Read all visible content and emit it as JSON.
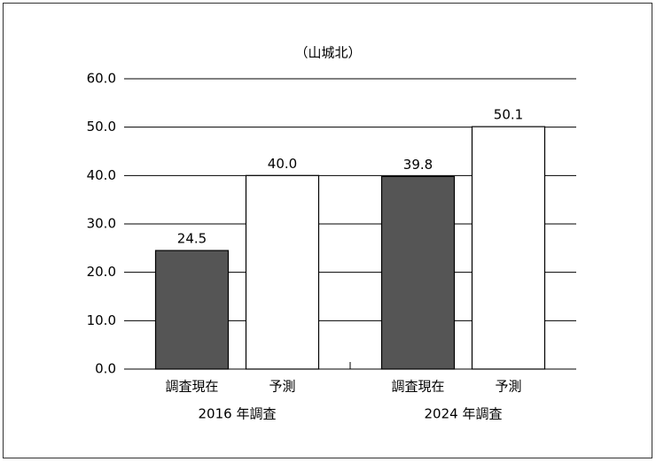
{
  "chart_data": {
    "type": "bar",
    "title": "（山城北）",
    "categories": [
      "調査現在",
      "予測",
      "調査現在",
      "予測"
    ],
    "groups": [
      "2016 年調査",
      "2024 年調査"
    ],
    "values": [
      24.5,
      40.0,
      39.8,
      50.1
    ],
    "value_labels": [
      "24.5",
      "40.0",
      "39.8",
      "50.1"
    ],
    "colors": [
      "#555555",
      "#ffffff",
      "#555555",
      "#ffffff"
    ],
    "ylim": [
      0,
      60
    ],
    "yticks": [
      {
        "value": 0,
        "label": "0.0"
      },
      {
        "value": 10,
        "label": "10.0"
      },
      {
        "value": 20,
        "label": "20.0"
      },
      {
        "value": 30,
        "label": "30.0"
      },
      {
        "value": 40,
        "label": "40.0"
      },
      {
        "value": 50,
        "label": "50.0"
      },
      {
        "value": 60,
        "label": "60.0"
      }
    ],
    "grid": true
  }
}
